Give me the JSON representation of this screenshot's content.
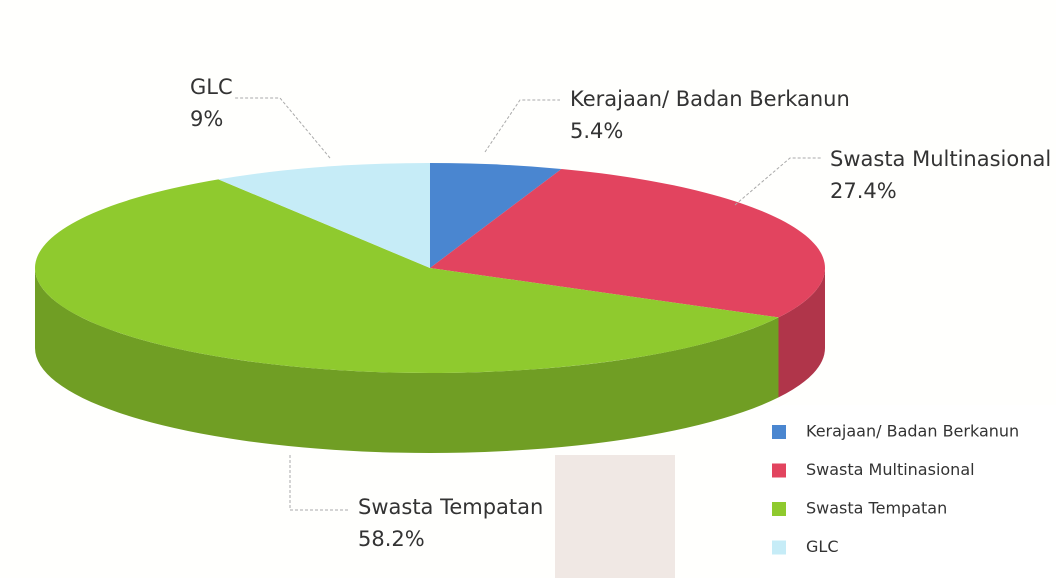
{
  "chart_data": {
    "type": "pie3d",
    "categories": [
      "Kerajaan/ Badan Berkanun",
      "Swasta Multinasional",
      "Swasta Tempatan",
      "GLC"
    ],
    "values": [
      5.4,
      27.4,
      58.2,
      9
    ],
    "value_labels": [
      "5.4%",
      "27.4%",
      "58.2%",
      "9%"
    ],
    "colors": [
      "#4a86d0",
      "#e2445f",
      "#8fca2e",
      "#c6ecf7"
    ],
    "legend": "bottom-right"
  }
}
